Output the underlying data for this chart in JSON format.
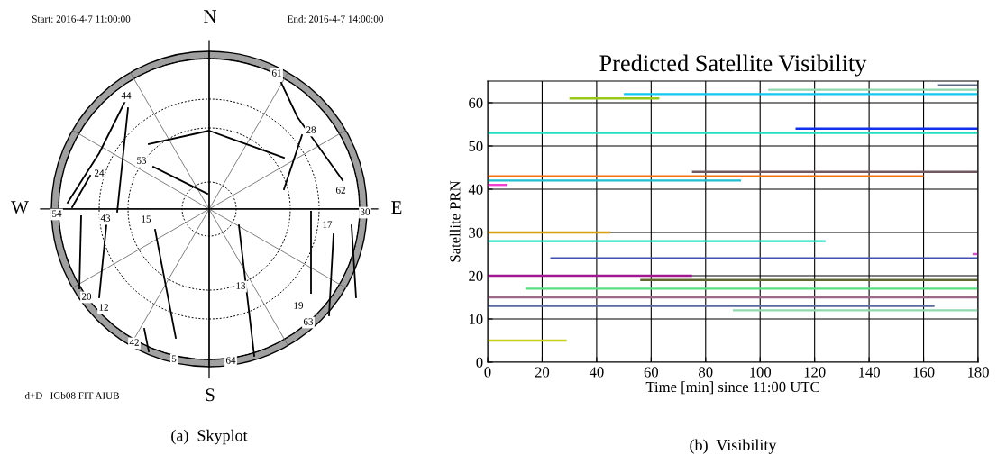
{
  "chart_data": [
    {
      "type": "other",
      "annotations": [
        "Start: 2016-4-7 11:00:00",
        "End: 2016-4-7 14:00:00",
        "N",
        "E",
        "S",
        "W",
        "61",
        "44",
        "28",
        "53",
        "24",
        "62",
        "54",
        "43",
        "15",
        "17",
        "30",
        "13",
        "19",
        "20",
        "12",
        "63",
        "42",
        "5",
        "64",
        "d+D   IGb08 FIT AIUB",
        "(a)  Skyplot"
      ]
    },
    {
      "type": "bar",
      "orientation": "horizontal",
      "title": "Predicted Satellite Visibility",
      "xlabel": "Time [min] since 11:00 UTC",
      "ylabel": "Satellite PRN",
      "x": [
        64,
        63,
        62,
        61,
        54,
        53,
        44,
        43,
        42,
        41,
        30,
        28,
        25,
        24,
        20,
        19,
        17,
        15,
        13,
        12,
        5
      ],
      "base": [
        165,
        103,
        50,
        30,
        113,
        0,
        75,
        0,
        0,
        0,
        0,
        0,
        178,
        23,
        0,
        56,
        14,
        0,
        0,
        90,
        0
      ],
      "values": [
        15,
        77,
        130,
        33,
        67,
        180,
        105,
        160,
        93,
        7,
        45,
        124,
        2,
        157,
        75,
        124,
        166,
        180,
        164,
        90,
        29
      ],
      "colors": [
        "#5a6a84",
        "#90d8b0",
        "#10c8f0",
        "#98c818",
        "#1030f0",
        "#20e0c0",
        "#705860",
        "#f87010",
        "#20c0d0",
        "#f040d0",
        "#d8a010",
        "#20e0c0",
        "#d050d0",
        "#4050b0",
        "#a01890",
        "#606830",
        "#58e080",
        "#a06888",
        "#5868a0",
        "#90d8b0",
        "#c8d020"
      ],
      "xlim": [
        0,
        180
      ],
      "xticks": [
        0,
        20,
        40,
        60,
        80,
        100,
        120,
        140,
        160,
        180
      ],
      "ylim": [
        0,
        65
      ],
      "yticks": [
        0,
        10,
        20,
        30,
        40,
        50,
        60
      ],
      "grid": true,
      "annotations": [
        "(b)  Visibility"
      ]
    }
  ]
}
